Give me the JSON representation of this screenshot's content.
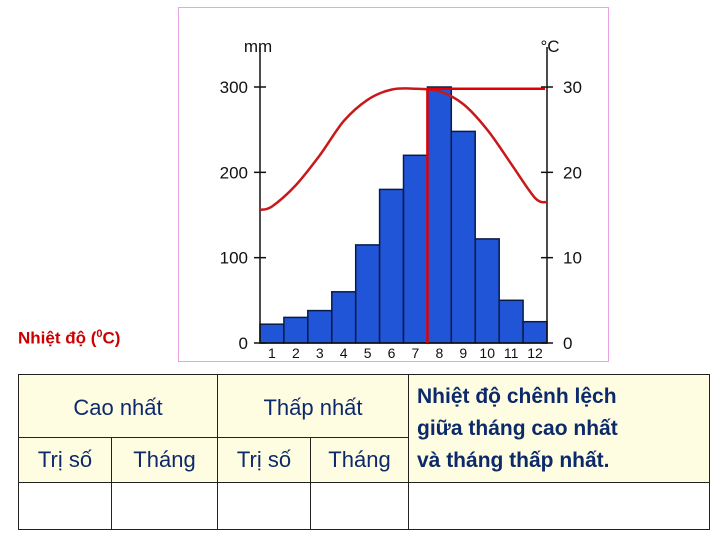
{
  "chart_data": {
    "type": "bar",
    "left_axis": {
      "unit": "mm",
      "ticks": [
        "300",
        "200",
        "100",
        "0"
      ],
      "ylim": [
        0,
        300
      ]
    },
    "right_axis": {
      "unit": "°C",
      "ticks": [
        "30",
        "20",
        "10",
        "0"
      ],
      "ylim": [
        0,
        30
      ]
    },
    "categories": [
      "1",
      "2",
      "3",
      "4",
      "5",
      "6",
      "7",
      "8",
      "9",
      "10",
      "11",
      "12"
    ],
    "rainfall_mm": [
      22,
      30,
      38,
      60,
      115,
      180,
      220,
      300,
      248,
      122,
      50,
      25
    ],
    "temperature_c": [
      16,
      18.5,
      22,
      26,
      28.5,
      29.7,
      29.8,
      29.5,
      28,
      25,
      21,
      17
    ],
    "colors": {
      "bars": "#1f55d6",
      "bar_edge": "#0a1b4a",
      "temperature": "#c8181a",
      "marker": "#e00000"
    },
    "marker_month": 7.5,
    "marker_value_c": 29.8,
    "grid": false,
    "legend": "none"
  },
  "caption": {
    "text": "Nhiệt độ (",
    "sup": "0",
    "unit": "C)"
  },
  "table": {
    "high": "Cao nhất",
    "low": "Thấp nhất",
    "value": "Trị số",
    "month": "Tháng",
    "note": [
      "Nhiệt độ chênh lệch",
      "giữa tháng cao nhất",
      "và tháng thấp nhất."
    ]
  }
}
